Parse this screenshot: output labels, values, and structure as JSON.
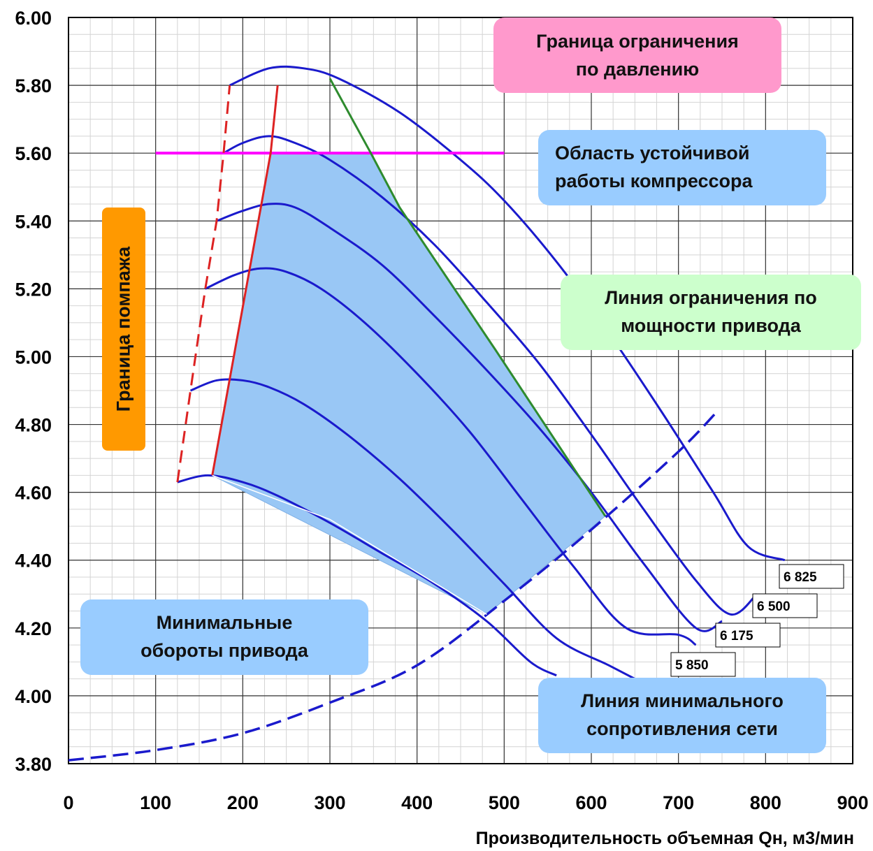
{
  "chart_data": {
    "type": "line",
    "title": "",
    "xlabel": "Производительность объемная Qн, м3/мин",
    "ylabel": "",
    "xlim": [
      0,
      900
    ],
    "ylim": [
      3.8,
      6.0
    ],
    "x_ticks": [
      0,
      100,
      200,
      300,
      400,
      500,
      600,
      700,
      800,
      900
    ],
    "y_ticks": [
      3.8,
      4.0,
      4.2,
      4.4,
      4.6,
      4.8,
      5.0,
      5.2,
      5.4,
      5.6,
      5.8,
      6.0
    ],
    "y_tick_labels": [
      "3.80",
      "4.00",
      "4.20",
      "4.40",
      "4.60",
      "4.80",
      "5.00",
      "5.20",
      "5.40",
      "5.60",
      "5.80",
      "6.00"
    ],
    "grid": true,
    "series": [
      {
        "name": "6 825",
        "x": [
          185,
          230,
          270,
          310,
          380,
          450,
          500,
          560,
          620,
          680,
          740,
          780,
          822
        ],
        "y": [
          5.8,
          5.85,
          5.85,
          5.82,
          5.72,
          5.58,
          5.46,
          5.28,
          5.07,
          4.84,
          4.6,
          4.44,
          4.4
        ]
      },
      {
        "name": "6 500",
        "x": [
          178,
          200,
          230,
          260,
          300,
          360,
          420,
          480,
          540,
          600,
          660,
          720,
          760,
          790
        ],
        "y": [
          5.6,
          5.63,
          5.65,
          5.63,
          5.58,
          5.47,
          5.33,
          5.16,
          4.98,
          4.77,
          4.55,
          4.34,
          4.24,
          4.3
        ]
      },
      {
        "name": "6 175",
        "x": [
          170,
          200,
          230,
          260,
          300,
          360,
          420,
          480,
          540,
          600,
          660,
          720,
          750
        ],
        "y": [
          5.4,
          5.43,
          5.45,
          5.44,
          5.38,
          5.27,
          5.12,
          4.96,
          4.79,
          4.6,
          4.39,
          4.2,
          4.22
        ]
      },
      {
        "name": "5 850",
        "x": [
          157,
          190,
          220,
          250,
          290,
          340,
          400,
          460,
          520,
          580,
          640,
          700,
          720
        ],
        "y": [
          5.2,
          5.24,
          5.26,
          5.25,
          5.2,
          5.1,
          4.95,
          4.78,
          4.58,
          4.38,
          4.2,
          4.18,
          4.15
        ]
      },
      {
        "name": "",
        "x": [
          140,
          170,
          200,
          230,
          270,
          320,
          380,
          440,
          500,
          560,
          620,
          650
        ],
        "y": [
          4.9,
          4.93,
          4.93,
          4.91,
          4.86,
          4.77,
          4.64,
          4.49,
          4.33,
          4.17,
          4.09,
          4.05
        ]
      },
      {
        "name": "",
        "x": [
          125,
          160,
          200,
          240,
          300,
          360,
          420,
          480,
          530,
          560
        ],
        "y": [
          4.63,
          4.65,
          4.63,
          4.59,
          4.51,
          4.42,
          4.33,
          4.22,
          4.1,
          4.06
        ]
      }
    ],
    "annotations": [
      "Граница ограничения по давлению",
      "Область устойчивой работы компрессора",
      "Линия ограничения по мощности привода",
      "Граница помпажа",
      "Минимальные обороты привода",
      "Линия минимального сопротивления сети"
    ]
  },
  "callouts": {
    "pressure_limit_line1": "Граница ограничения",
    "pressure_limit_line2": "по давлению",
    "stable_region_line1": "Область устойчивой",
    "stable_region_line2": "работы компрессора",
    "power_limit_line1": "Линия ограничения по",
    "power_limit_line2": "мощности привода",
    "surge": "Граница помпажа",
    "min_rpm_line1": "Минимальные",
    "min_rpm_line2": "обороты привода",
    "min_resistance_line1": "Линия минимального",
    "min_resistance_line2": "сопротивления сети"
  },
  "colors": {
    "curve": "#1a1acc",
    "region": "#99c7f5",
    "pressure_limit": "#ff00ff",
    "surge": "#dd2222",
    "power_limit": "#2e8b2e"
  }
}
